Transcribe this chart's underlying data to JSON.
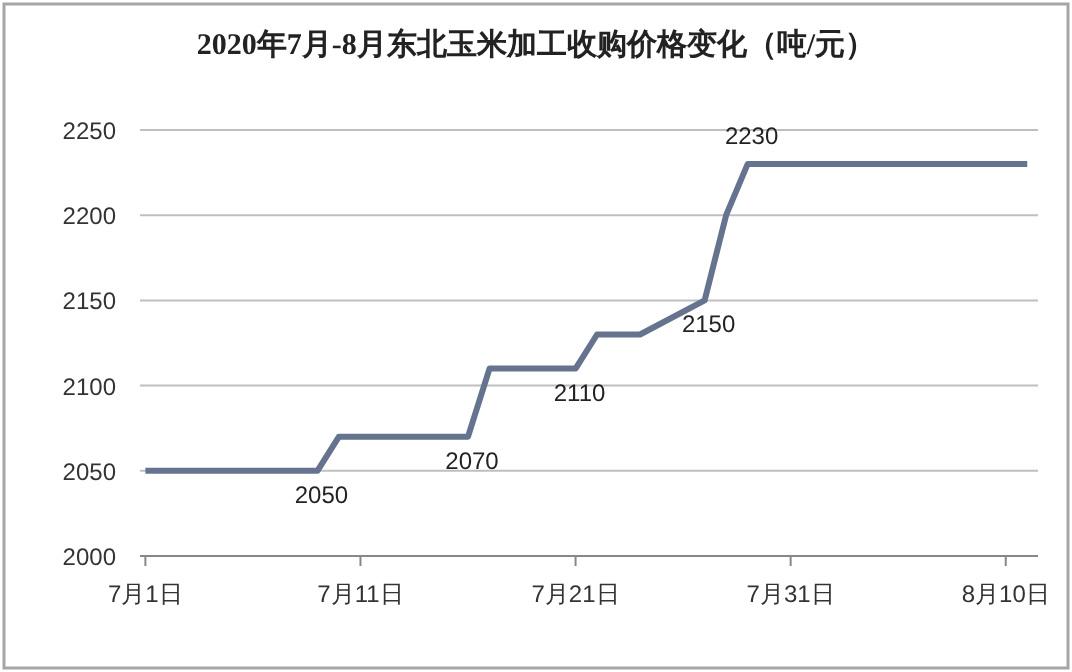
{
  "chart_data": {
    "type": "line",
    "title": "2020年7月-8月东北玉米加工收购价格变化（吨/元）",
    "x": [
      "2020-07-01",
      "2020-07-09",
      "2020-07-10",
      "2020-07-16",
      "2020-07-17",
      "2020-07-21",
      "2020-07-22",
      "2020-07-24",
      "2020-07-27",
      "2020-07-28",
      "2020-07-29",
      "2020-08-11"
    ],
    "series": [
      {
        "color": "#65738f",
        "values": [
          2050,
          2050,
          2070,
          2070,
          2110,
          2110,
          2130,
          2130,
          2150,
          2200,
          2230,
          2230
        ],
        "value_labels": [
          null,
          "2050",
          null,
          "2070",
          null,
          "2110",
          null,
          null,
          "2150",
          null,
          "2230",
          null
        ]
      }
    ],
    "xlim": [
      "2020-06-30T18:00",
      "2020-08-11T12:00"
    ],
    "xticks": [
      {
        "value": "2020-07-01",
        "label": "7月1日"
      },
      {
        "value": "2020-07-11",
        "label": "7月11日"
      },
      {
        "value": "2020-07-21",
        "label": "7月21日"
      },
      {
        "value": "2020-07-31",
        "label": "7月31日"
      },
      {
        "value": "2020-08-10",
        "label": "8月10日"
      }
    ],
    "ylim": [
      2000,
      2250
    ],
    "yticks": [
      2000,
      2050,
      2100,
      2150,
      2200,
      2250
    ],
    "grid": "y",
    "marker": "none",
    "line_style": "solid"
  }
}
